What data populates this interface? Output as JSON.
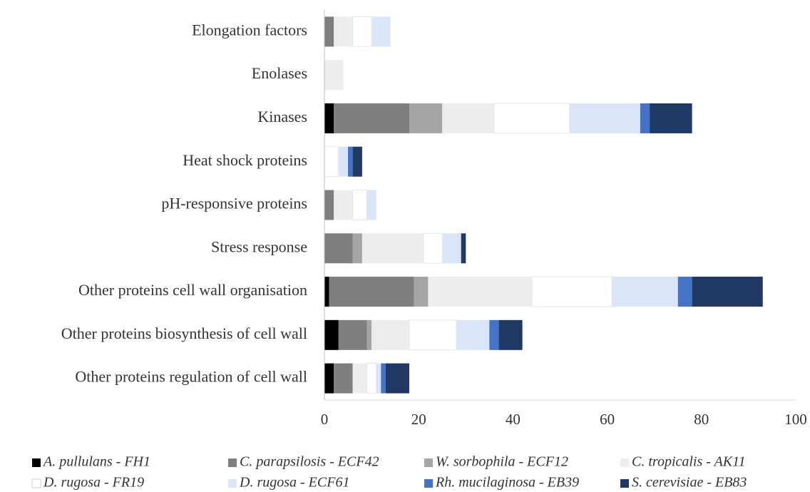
{
  "chart_data": {
    "type": "stacked-barh",
    "categories": [
      "Elongation factors",
      "Enolases",
      "Kinases",
      "Heat shock proteins",
      "pH-responsive proteins",
      "Stress response",
      "Other proteins cell wall organisation",
      "Other proteins biosynthesis of cell wall",
      "Other proteins regulation of cell wall"
    ],
    "series": [
      {
        "name": "A. pullulans - FH1",
        "color": "#000000",
        "values": [
          0,
          0,
          2,
          0,
          0,
          0,
          1,
          3,
          2
        ]
      },
      {
        "name": "C. parapsilosis - ECF42",
        "color": "#7f7f7f",
        "values": [
          2,
          0,
          16,
          0,
          2,
          6,
          18,
          6,
          4
        ]
      },
      {
        "name": "W. sorbophila - ECF12",
        "color": "#a5a5a5",
        "values": [
          0,
          0,
          7,
          0,
          0,
          2,
          3,
          1,
          0
        ]
      },
      {
        "name": "C. tropicalis - AK11",
        "color": "#ededed",
        "values": [
          4,
          4,
          11,
          0,
          4,
          13,
          22,
          8,
          3
        ]
      },
      {
        "name": "D. rugosa - FR19",
        "color": "#ffffff",
        "values": [
          4,
          0,
          16,
          3,
          3,
          4,
          17,
          10,
          2
        ]
      },
      {
        "name": "D. rugosa - ECF61",
        "color": "#dae6f8",
        "values": [
          4,
          0,
          15,
          2,
          2,
          4,
          14,
          7,
          1
        ]
      },
      {
        "name": "Rh. mucilaginosa - EB39",
        "color": "#4472c4",
        "values": [
          0,
          0,
          2,
          1,
          0,
          0,
          3,
          2,
          1
        ]
      },
      {
        "name": "S. cerevisiae - EB83",
        "color": "#1f3864",
        "values": [
          0,
          0,
          9,
          2,
          0,
          1,
          15,
          5,
          5
        ]
      }
    ],
    "xlim": [
      0,
      100
    ],
    "xticks": [
      0,
      20,
      40,
      60,
      80,
      100
    ],
    "legend": "bottom"
  }
}
